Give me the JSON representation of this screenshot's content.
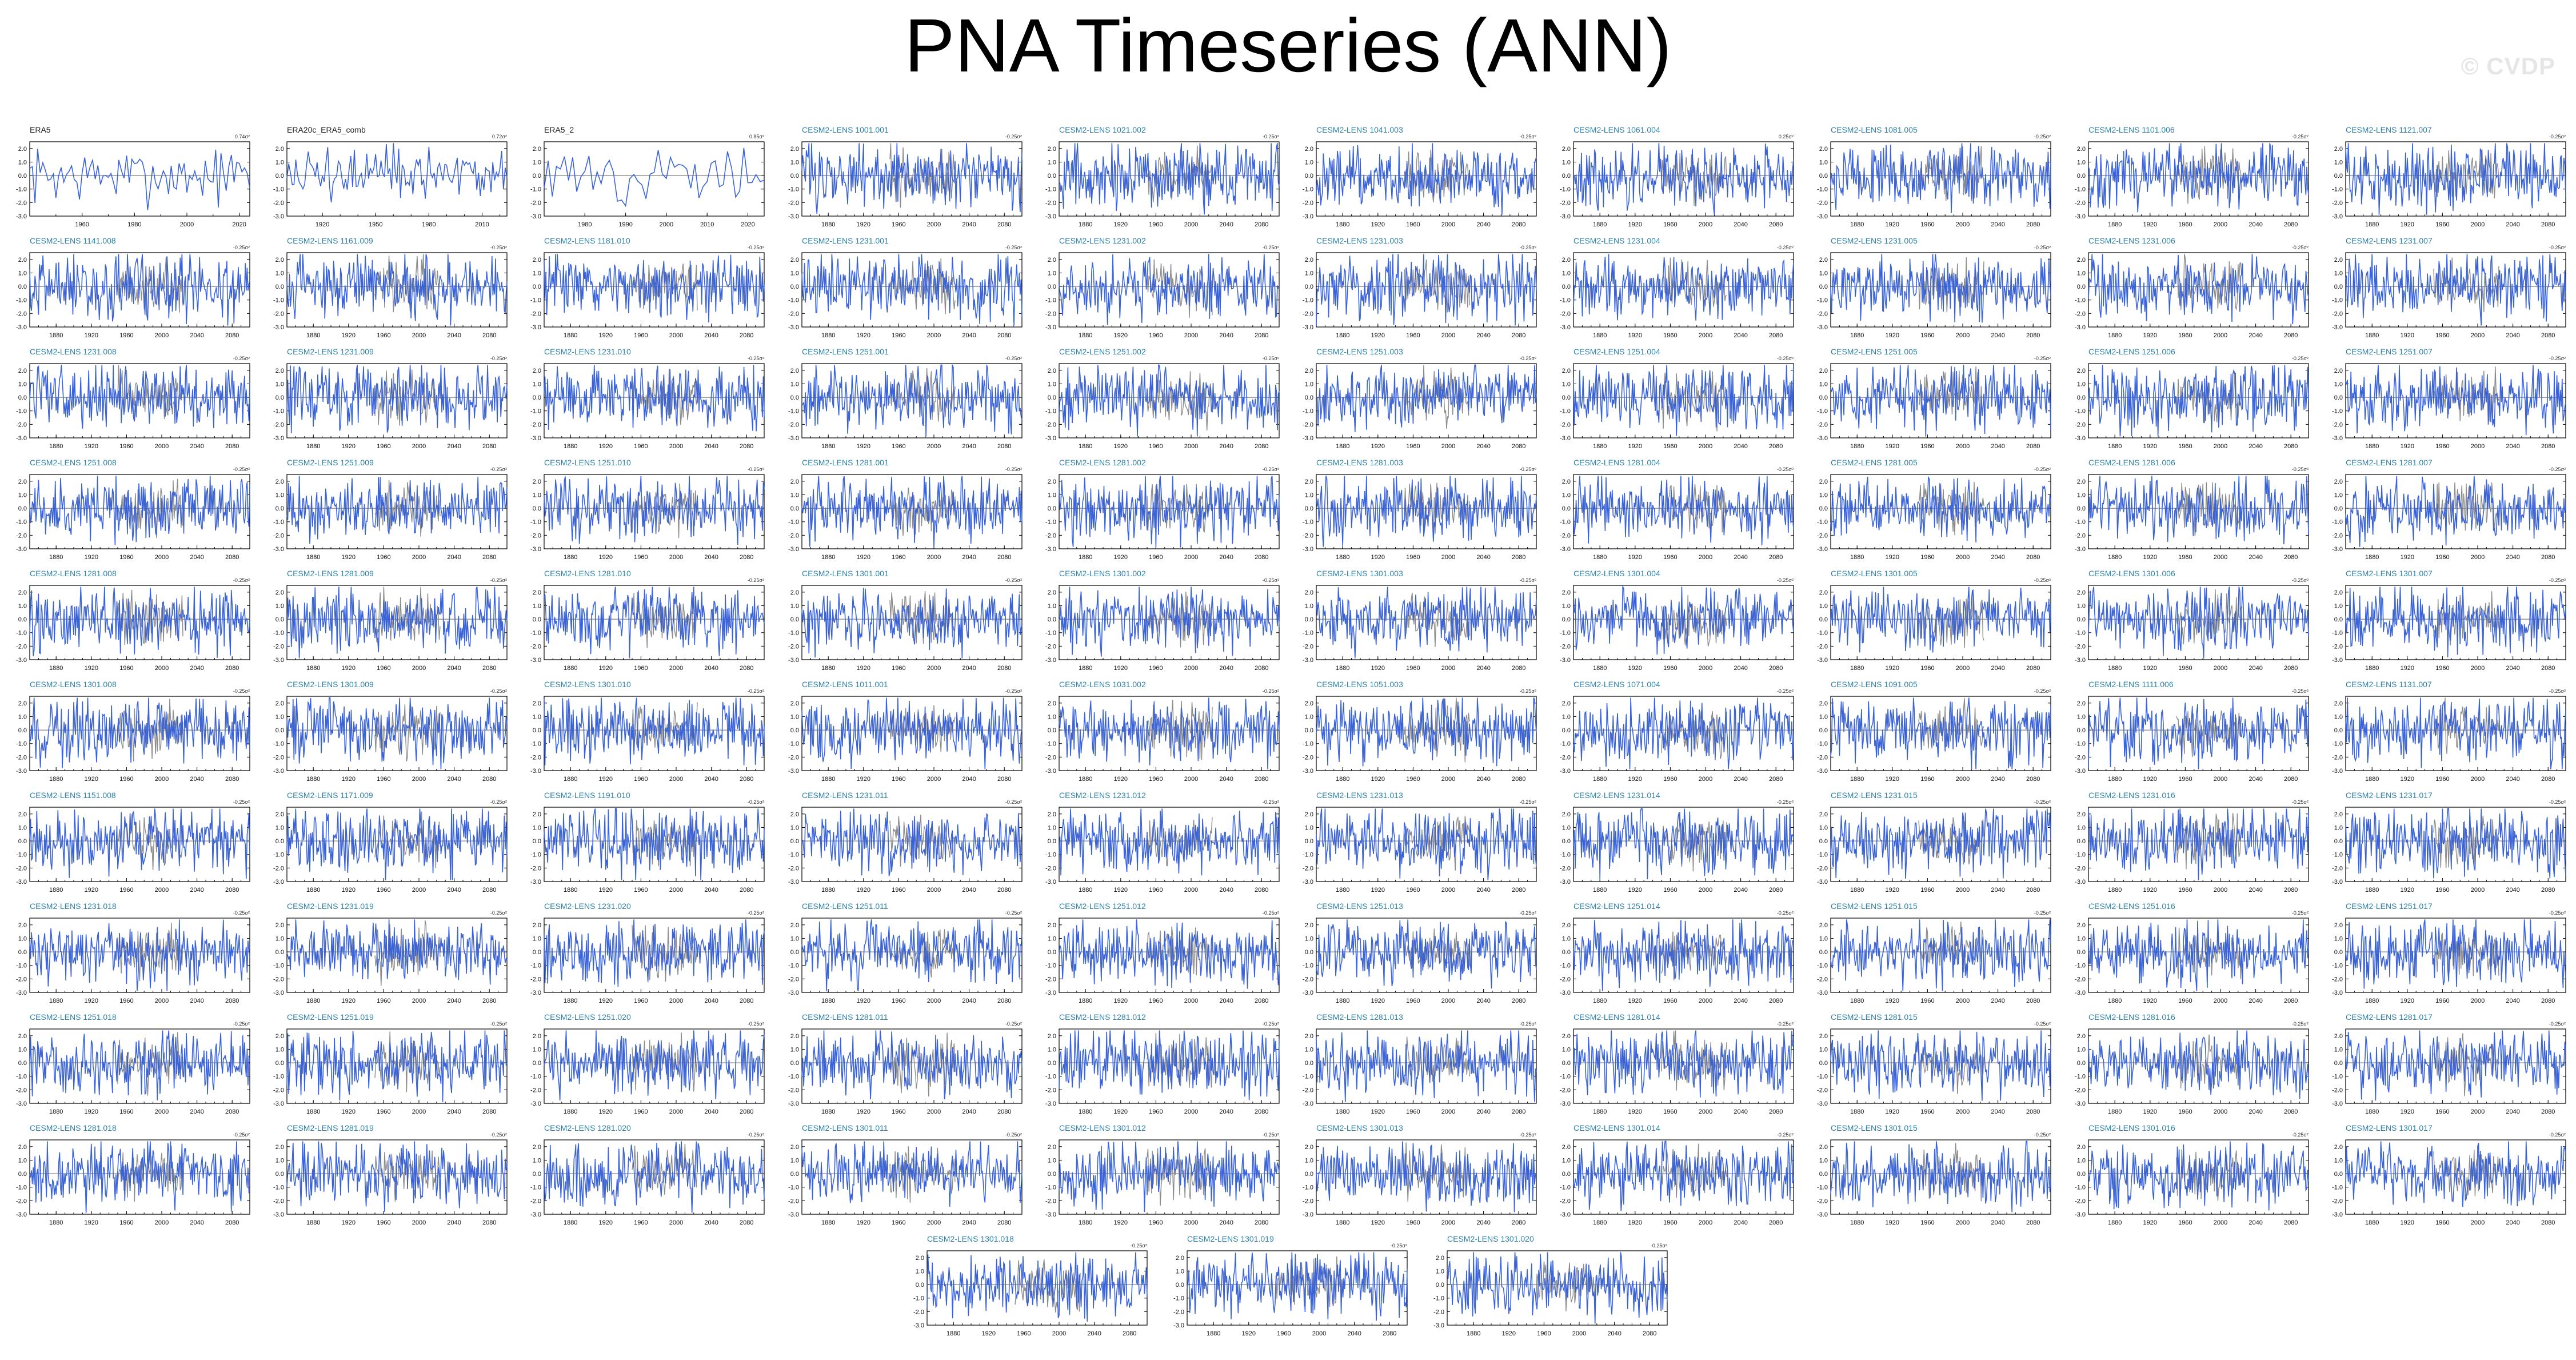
{
  "title": "PNA Timeseries (ANN)",
  "watermark": "© CVDP",
  "colors": {
    "model_line": "#3a63d8",
    "obs_line": "#3a63d8",
    "ensemble_gray": "#8c8c8c",
    "model_title": "#2f82a8",
    "obs_title": "#222222"
  },
  "chart_data": {
    "type": "line",
    "ylim": [
      -3.0,
      2.5
    ],
    "yticks": [
      "2.0",
      "1.0",
      "0.0",
      "-1.0",
      "-2.0",
      "-3.0"
    ],
    "panels": [
      {
        "title": "ERA5",
        "unit": "0.74σ²",
        "kind": "obs",
        "start": 1940,
        "end": 2024,
        "xticks": [
          "1960",
          "1980",
          "2000",
          "2020"
        ]
      },
      {
        "title": "ERA20c_ERA5_comb",
        "unit": "0.72σ²",
        "kind": "obs",
        "start": 1900,
        "end": 2024,
        "xticks": [
          "1920",
          "1950",
          "1980",
          "2010"
        ]
      },
      {
        "title": "ERA5_2",
        "unit": "0.85σ²",
        "kind": "obs",
        "start": 1970,
        "end": 2024,
        "xticks": [
          "1980",
          "1990",
          "2000",
          "2010",
          "2020"
        ]
      },
      {
        "title": "CESM2-LENS 1001.001",
        "unit": "-0.25σ²",
        "kind": "model"
      },
      {
        "title": "CESM2-LENS 1021.002",
        "unit": "-0.25σ²",
        "kind": "model"
      },
      {
        "title": "CESM2-LENS 1041.003",
        "unit": "-0.25σ²",
        "kind": "model"
      },
      {
        "title": "CESM2-LENS 1061.004",
        "unit": "0.25σ²",
        "kind": "model"
      },
      {
        "title": "CESM2-LENS 1081.005",
        "unit": "-0.25σ²",
        "kind": "model"
      },
      {
        "title": "CESM2-LENS 1101.006",
        "unit": "-0.25σ²",
        "kind": "model"
      },
      {
        "title": "CESM2-LENS 1121.007",
        "unit": "-0.25σ²",
        "kind": "model"
      },
      {
        "title": "CESM2-LENS 1141.008",
        "unit": "-0.25σ²",
        "kind": "model"
      },
      {
        "title": "CESM2-LENS 1161.009",
        "unit": "-0.25σ²",
        "kind": "model"
      },
      {
        "title": "CESM2-LENS 1181.010",
        "unit": "-0.25σ²",
        "kind": "model"
      },
      {
        "title": "CESM2-LENS 1231.001",
        "unit": "-0.25σ²",
        "kind": "model"
      },
      {
        "title": "CESM2-LENS 1231.002",
        "unit": "-0.25σ²",
        "kind": "model"
      },
      {
        "title": "CESM2-LENS 1231.003",
        "unit": "-0.25σ²",
        "kind": "model"
      },
      {
        "title": "CESM2-LENS 1231.004",
        "unit": "-0.25σ²",
        "kind": "model"
      },
      {
        "title": "CESM2-LENS 1231.005",
        "unit": "-0.25σ²",
        "kind": "model"
      },
      {
        "title": "CESM2-LENS 1231.006",
        "unit": "-0.25σ²",
        "kind": "model"
      },
      {
        "title": "CESM2-LENS 1231.007",
        "unit": "-0.25σ²",
        "kind": "model"
      },
      {
        "title": "CESM2-LENS 1231.008",
        "unit": "-0.25σ²",
        "kind": "model"
      },
      {
        "title": "CESM2-LENS 1231.009",
        "unit": "-0.25σ²",
        "kind": "model"
      },
      {
        "title": "CESM2-LENS 1231.010",
        "unit": "-0.25σ²",
        "kind": "model"
      },
      {
        "title": "CESM2-LENS 1251.001",
        "unit": "-0.25σ²",
        "kind": "model"
      },
      {
        "title": "CESM2-LENS 1251.002",
        "unit": "-0.25σ²",
        "kind": "model"
      },
      {
        "title": "CESM2-LENS 1251.003",
        "unit": "-0.25σ²",
        "kind": "model"
      },
      {
        "title": "CESM2-LENS 1251.004",
        "unit": "-0.25σ²",
        "kind": "model"
      },
      {
        "title": "CESM2-LENS 1251.005",
        "unit": "-0.25σ²",
        "kind": "model"
      },
      {
        "title": "CESM2-LENS 1251.006",
        "unit": "-0.25σ²",
        "kind": "model"
      },
      {
        "title": "CESM2-LENS 1251.007",
        "unit": "-0.25σ²",
        "kind": "model"
      },
      {
        "title": "CESM2-LENS 1251.008",
        "unit": "-0.25σ²",
        "kind": "model"
      },
      {
        "title": "CESM2-LENS 1251.009",
        "unit": "-0.25σ²",
        "kind": "model"
      },
      {
        "title": "CESM2-LENS 1251.010",
        "unit": "-0.25σ²",
        "kind": "model"
      },
      {
        "title": "CESM2-LENS 1281.001",
        "unit": "-0.25σ²",
        "kind": "model"
      },
      {
        "title": "CESM2-LENS 1281.002",
        "unit": "-0.25σ²",
        "kind": "model"
      },
      {
        "title": "CESM2-LENS 1281.003",
        "unit": "-0.25σ²",
        "kind": "model"
      },
      {
        "title": "CESM2-LENS 1281.004",
        "unit": "-0.25σ²",
        "kind": "model"
      },
      {
        "title": "CESM2-LENS 1281.005",
        "unit": "-0.25σ²",
        "kind": "model"
      },
      {
        "title": "CESM2-LENS 1281.006",
        "unit": "-0.25σ²",
        "kind": "model"
      },
      {
        "title": "CESM2-LENS 1281.007",
        "unit": "-0.25σ²",
        "kind": "model"
      },
      {
        "title": "CESM2-LENS 1281.008",
        "unit": "-0.25σ²",
        "kind": "model"
      },
      {
        "title": "CESM2-LENS 1281.009",
        "unit": "-0.25σ²",
        "kind": "model"
      },
      {
        "title": "CESM2-LENS 1281.010",
        "unit": "-0.25σ²",
        "kind": "model"
      },
      {
        "title": "CESM2-LENS 1301.001",
        "unit": "-0.25σ²",
        "kind": "model"
      },
      {
        "title": "CESM2-LENS 1301.002",
        "unit": "-0.25σ²",
        "kind": "model"
      },
      {
        "title": "CESM2-LENS 1301.003",
        "unit": "-0.25σ²",
        "kind": "model"
      },
      {
        "title": "CESM2-LENS 1301.004",
        "unit": "-0.25σ²",
        "kind": "model"
      },
      {
        "title": "CESM2-LENS 1301.005",
        "unit": "-0.25σ²",
        "kind": "model"
      },
      {
        "title": "CESM2-LENS 1301.006",
        "unit": "-0.25σ²",
        "kind": "model"
      },
      {
        "title": "CESM2-LENS 1301.007",
        "unit": "-0.25σ²",
        "kind": "model"
      },
      {
        "title": "CESM2-LENS 1301.008",
        "unit": "-0.25σ²",
        "kind": "model"
      },
      {
        "title": "CESM2-LENS 1301.009",
        "unit": "-0.25σ²",
        "kind": "model"
      },
      {
        "title": "CESM2-LENS 1301.010",
        "unit": "-0.25σ²",
        "kind": "model"
      },
      {
        "title": "CESM2-LENS 1011.001",
        "unit": "-0.25σ²",
        "kind": "model"
      },
      {
        "title": "CESM2-LENS 1031.002",
        "unit": "-0.25σ²",
        "kind": "model"
      },
      {
        "title": "CESM2-LENS 1051.003",
        "unit": "-0.25σ²",
        "kind": "model"
      },
      {
        "title": "CESM2-LENS 1071.004",
        "unit": "-0.25σ²",
        "kind": "model"
      },
      {
        "title": "CESM2-LENS 1091.005",
        "unit": "-0.25σ²",
        "kind": "model"
      },
      {
        "title": "CESM2-LENS 1111.006",
        "unit": "-0.25σ²",
        "kind": "model"
      },
      {
        "title": "CESM2-LENS 1131.007",
        "unit": "-0.25σ²",
        "kind": "model"
      },
      {
        "title": "CESM2-LENS 1151.008",
        "unit": "-0.25σ²",
        "kind": "model"
      },
      {
        "title": "CESM2-LENS 1171.009",
        "unit": "-0.25σ²",
        "kind": "model"
      },
      {
        "title": "CESM2-LENS 1191.010",
        "unit": "-0.25σ²",
        "kind": "model"
      },
      {
        "title": "CESM2-LENS 1231.011",
        "unit": "-0.25σ²",
        "kind": "model"
      },
      {
        "title": "CESM2-LENS 1231.012",
        "unit": "-0.25σ²",
        "kind": "model"
      },
      {
        "title": "CESM2-LENS 1231.013",
        "unit": "-0.25σ²",
        "kind": "model"
      },
      {
        "title": "CESM2-LENS 1231.014",
        "unit": "-0.25σ²",
        "kind": "model"
      },
      {
        "title": "CESM2-LENS 1231.015",
        "unit": "-0.25σ²",
        "kind": "model"
      },
      {
        "title": "CESM2-LENS 1231.016",
        "unit": "-0.25σ²",
        "kind": "model"
      },
      {
        "title": "CESM2-LENS 1231.017",
        "unit": "-0.25σ²",
        "kind": "model"
      },
      {
        "title": "CESM2-LENS 1231.018",
        "unit": "-0.25σ²",
        "kind": "model"
      },
      {
        "title": "CESM2-LENS 1231.019",
        "unit": "-0.25σ²",
        "kind": "model"
      },
      {
        "title": "CESM2-LENS 1231.020",
        "unit": "-0.25σ²",
        "kind": "model"
      },
      {
        "title": "CESM2-LENS 1251.011",
        "unit": "-0.25σ²",
        "kind": "model"
      },
      {
        "title": "CESM2-LENS 1251.012",
        "unit": "-0.25σ²",
        "kind": "model"
      },
      {
        "title": "CESM2-LENS 1251.013",
        "unit": "-0.25σ²",
        "kind": "model"
      },
      {
        "title": "CESM2-LENS 1251.014",
        "unit": "-0.25σ²",
        "kind": "model"
      },
      {
        "title": "CESM2-LENS 1251.015",
        "unit": "-0.25σ²",
        "kind": "model"
      },
      {
        "title": "CESM2-LENS 1251.016",
        "unit": "-0.25σ²",
        "kind": "model"
      },
      {
        "title": "CESM2-LENS 1251.017",
        "unit": "-0.25σ²",
        "kind": "model"
      },
      {
        "title": "CESM2-LENS 1251.018",
        "unit": "-0.25σ²",
        "kind": "model"
      },
      {
        "title": "CESM2-LENS 1251.019",
        "unit": "-0.25σ²",
        "kind": "model"
      },
      {
        "title": "CESM2-LENS 1251.020",
        "unit": "-0.25σ²",
        "kind": "model"
      },
      {
        "title": "CESM2-LENS 1281.011",
        "unit": "-0.25σ²",
        "kind": "model"
      },
      {
        "title": "CESM2-LENS 1281.012",
        "unit": "-0.25σ²",
        "kind": "model"
      },
      {
        "title": "CESM2-LENS 1281.013",
        "unit": "-0.25σ²",
        "kind": "model"
      },
      {
        "title": "CESM2-LENS 1281.014",
        "unit": "-0.25σ²",
        "kind": "model"
      },
      {
        "title": "CESM2-LENS 1281.015",
        "unit": "-0.25σ²",
        "kind": "model"
      },
      {
        "title": "CESM2-LENS 1281.016",
        "unit": "-0.25σ²",
        "kind": "model"
      },
      {
        "title": "CESM2-LENS 1281.017",
        "unit": "-0.25σ²",
        "kind": "model"
      },
      {
        "title": "CESM2-LENS 1281.018",
        "unit": "-0.25σ²",
        "kind": "model"
      },
      {
        "title": "CESM2-LENS 1281.019",
        "unit": "-0.25σ²",
        "kind": "model"
      },
      {
        "title": "CESM2-LENS 1281.020",
        "unit": "-0.25σ²",
        "kind": "model"
      },
      {
        "title": "CESM2-LENS 1301.011",
        "unit": "-0.25σ²",
        "kind": "model"
      },
      {
        "title": "CESM2-LENS 1301.012",
        "unit": "-0.25σ²",
        "kind": "model"
      },
      {
        "title": "CESM2-LENS 1301.013",
        "unit": "-0.25σ²",
        "kind": "model"
      },
      {
        "title": "CESM2-LENS 1301.014",
        "unit": "-0.25σ²",
        "kind": "model"
      },
      {
        "title": "CESM2-LENS 1301.015",
        "unit": "-0.25σ²",
        "kind": "model"
      },
      {
        "title": "CESM2-LENS 1301.016",
        "unit": "-0.25σ²",
        "kind": "model"
      },
      {
        "title": "CESM2-LENS 1301.017",
        "unit": "-0.25σ²",
        "kind": "model"
      },
      {
        "title": "CESM2-LENS 1301.018",
        "unit": "-0.25σ²",
        "kind": "model"
      },
      {
        "title": "CESM2-LENS 1301.019",
        "unit": "-0.25σ²",
        "kind": "model"
      },
      {
        "title": "CESM2-LENS 1301.020",
        "unit": "-0.25σ²",
        "kind": "model"
      }
    ],
    "model_years": [
      1850,
      2100
    ],
    "model_xticks": [
      "1880",
      "1920",
      "1960",
      "2000",
      "2040",
      "2080"
    ],
    "grid": false,
    "legend": "none"
  }
}
